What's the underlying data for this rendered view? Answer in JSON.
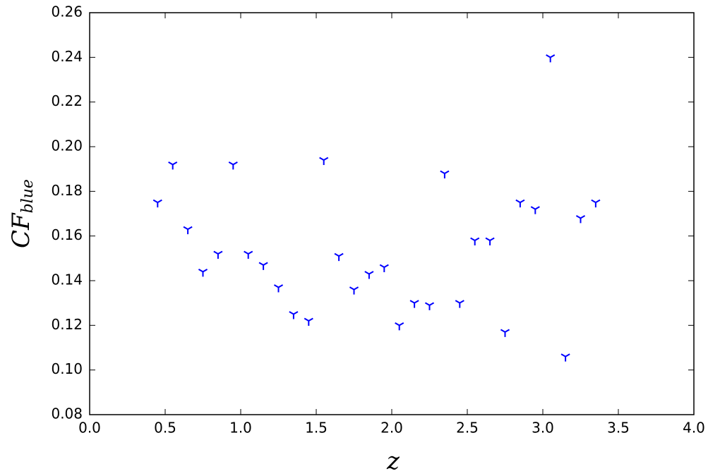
{
  "chart_data": {
    "type": "scatter",
    "x_label": "z",
    "y_label": {
      "main": "CF",
      "sub": "blue"
    },
    "series": [
      {
        "color": "#0000ff",
        "marker": "tri_down",
        "x": [
          0.45,
          0.55,
          0.65,
          0.75,
          0.85,
          0.95,
          1.05,
          1.15,
          1.25,
          1.35,
          1.45,
          1.55,
          1.65,
          1.75,
          1.85,
          1.95,
          2.05,
          2.15,
          2.25,
          2.35,
          2.45,
          2.55,
          2.65,
          2.75,
          2.85,
          2.95,
          3.05,
          3.15,
          3.25,
          3.35
        ],
        "values": [
          0.175,
          0.192,
          0.163,
          0.144,
          0.152,
          0.192,
          0.152,
          0.147,
          0.137,
          0.125,
          0.122,
          0.194,
          0.151,
          0.136,
          0.143,
          0.146,
          0.12,
          0.13,
          0.129,
          0.188,
          0.13,
          0.158,
          0.158,
          0.117,
          0.175,
          0.172,
          0.24,
          0.106,
          0.168,
          0.175
        ]
      }
    ],
    "xlim": [
      0,
      4
    ],
    "ylim": [
      0.08,
      0.26
    ],
    "xticks": [
      {
        "value": 0,
        "label": "0.0"
      },
      {
        "value": 0.5,
        "label": "0.5"
      },
      {
        "value": 1,
        "label": "1.0"
      },
      {
        "value": 1.5,
        "label": "1.5"
      },
      {
        "value": 2,
        "label": "2.0"
      },
      {
        "value": 2.5,
        "label": "2.5"
      },
      {
        "value": 3,
        "label": "3.0"
      },
      {
        "value": 3.5,
        "label": "3.5"
      },
      {
        "value": 4,
        "label": "4.0"
      }
    ],
    "yticks": [
      {
        "value": 0.08,
        "label": "0.08"
      },
      {
        "value": 0.1,
        "label": "0.10"
      },
      {
        "value": 0.12,
        "label": "0.12"
      },
      {
        "value": 0.14,
        "label": "0.14"
      },
      {
        "value": 0.16,
        "label": "0.16"
      },
      {
        "value": 0.18,
        "label": "0.18"
      },
      {
        "value": 0.2,
        "label": "0.20"
      },
      {
        "value": 0.22,
        "label": "0.22"
      },
      {
        "value": 0.24,
        "label": "0.24"
      },
      {
        "value": 0.26,
        "label": "0.26"
      }
    ],
    "grid": false
  }
}
